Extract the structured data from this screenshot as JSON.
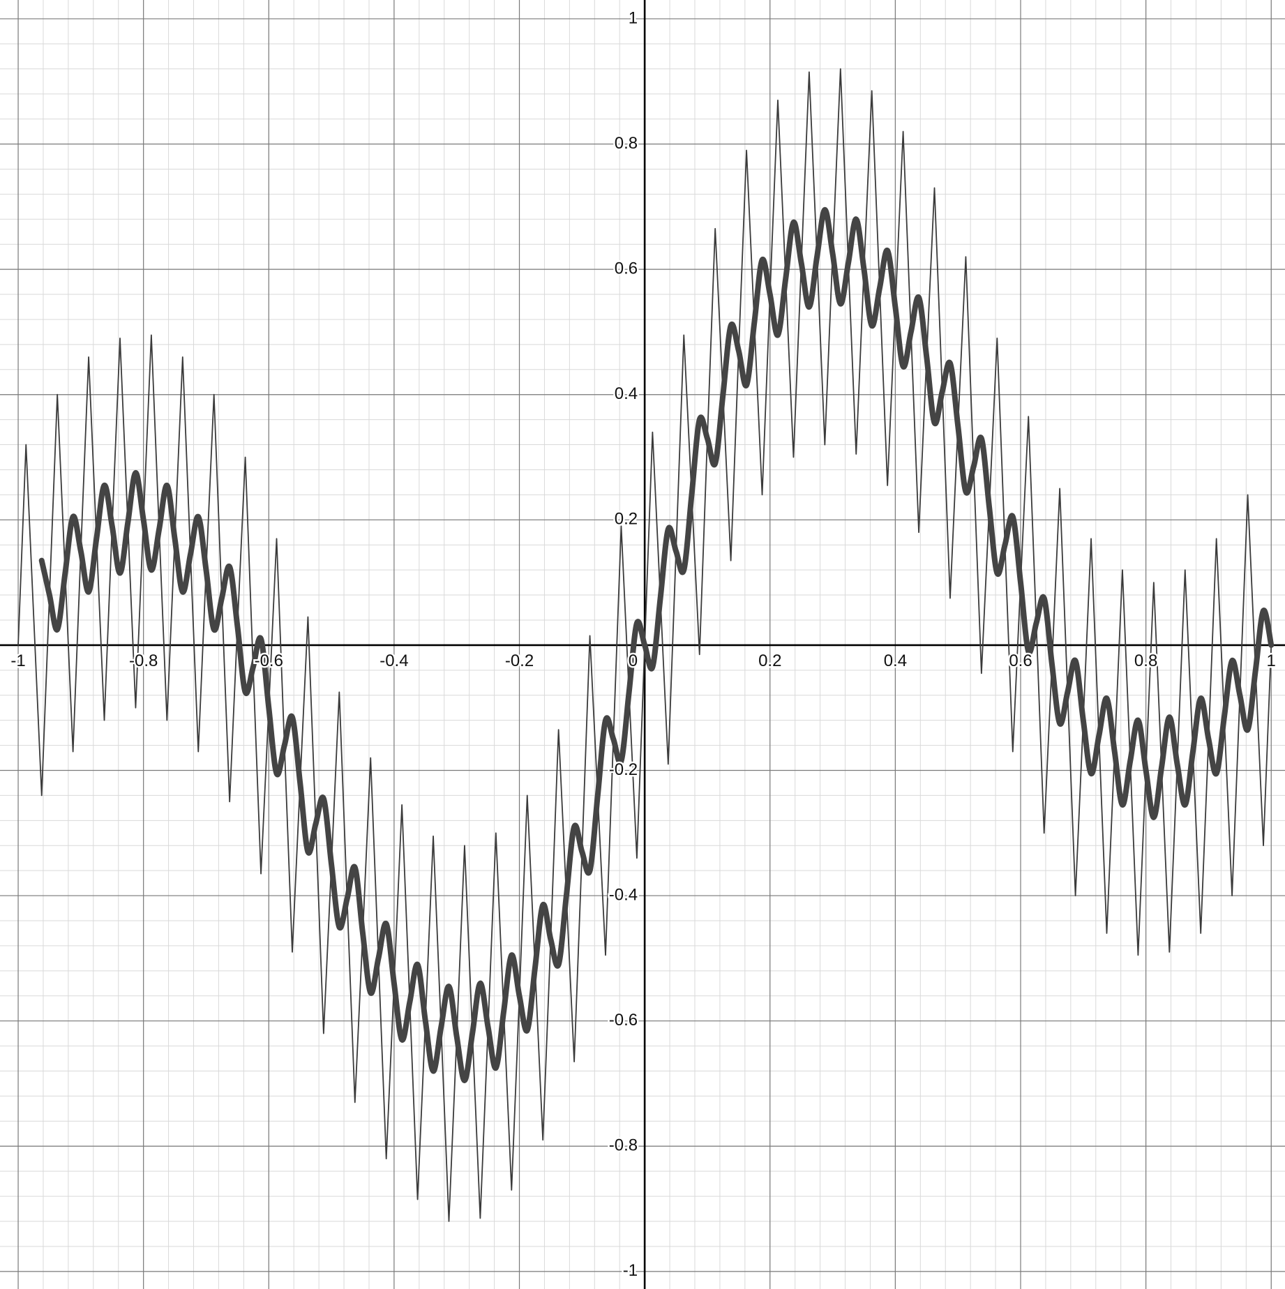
{
  "chart_data": {
    "type": "line",
    "xlim": [
      -1.029,
      1.022
    ],
    "ylim": [
      -1.028,
      1.03
    ],
    "xticks": [
      -1,
      -0.8,
      -0.6,
      -0.4,
      -0.2,
      0,
      0.2,
      0.4,
      0.6,
      0.8,
      1
    ],
    "yticks": [
      -1,
      -0.8,
      -0.6,
      -0.4,
      -0.2,
      0.2,
      0.4,
      0.6,
      0.8,
      1
    ],
    "grid": true,
    "minor_grid": 5,
    "x": [
      -1,
      -0.9875,
      -0.975,
      -0.9625,
      -0.95,
      -0.9375,
      -0.925,
      -0.9125,
      -0.9,
      -0.8875,
      -0.875,
      -0.8625,
      -0.85,
      -0.8375,
      -0.825,
      -0.8125,
      -0.8,
      -0.7875,
      -0.775,
      -0.7625,
      -0.75,
      -0.7375,
      -0.725,
      -0.7125,
      -0.7,
      -0.6875,
      -0.675,
      -0.6625,
      -0.65,
      -0.6375,
      -0.625,
      -0.6125,
      -0.6,
      -0.5875,
      -0.575,
      -0.5625,
      -0.55,
      -0.5375,
      -0.525,
      -0.5125,
      -0.5,
      -0.4875,
      -0.475,
      -0.4625,
      -0.45,
      -0.4375,
      -0.425,
      -0.4125,
      -0.4,
      -0.3875,
      -0.375,
      -0.3625,
      -0.35,
      -0.3375,
      -0.325,
      -0.3125,
      -0.3,
      -0.2875,
      -0.275,
      -0.2625,
      -0.25,
      -0.2375,
      -0.225,
      -0.2125,
      -0.2,
      -0.1875,
      -0.175,
      -0.1625,
      -0.15,
      -0.1375,
      -0.125,
      -0.1125,
      -0.1,
      -0.0875,
      -0.075,
      -0.0625,
      -0.05,
      -0.0375,
      -0.025,
      -0.0125,
      0,
      0.0125,
      0.025,
      0.0375,
      0.05,
      0.0625,
      0.075,
      0.0875,
      0.1,
      0.1125,
      0.125,
      0.1375,
      0.15,
      0.1625,
      0.175,
      0.1875,
      0.2,
      0.2125,
      0.225,
      0.2375,
      0.25,
      0.2625,
      0.275,
      0.2875,
      0.3,
      0.3125,
      0.325,
      0.3375,
      0.35,
      0.3625,
      0.375,
      0.3875,
      0.4,
      0.4125,
      0.425,
      0.4375,
      0.45,
      0.4625,
      0.475,
      0.4875,
      0.5,
      0.5125,
      0.525,
      0.5375,
      0.55,
      0.5625,
      0.575,
      0.5875,
      0.6,
      0.6125,
      0.625,
      0.6375,
      0.65,
      0.6625,
      0.675,
      0.6875,
      0.7,
      0.7125,
      0.725,
      0.7375,
      0.75,
      0.7625,
      0.775,
      0.7875,
      0.8,
      0.8125,
      0.825,
      0.8375,
      0.85,
      0.8625,
      0.875,
      0.8875,
      0.9,
      0.9125,
      0.925,
      0.9375,
      0.95,
      0.9625,
      0.975,
      0.9875,
      1
    ],
    "series": [
      {
        "color": "#3a3a3a",
        "width": 1.8,
        "smooth": false,
        "values": [
          0,
          0.32,
          0.04,
          -0.24,
          0.08,
          0.4,
          0.115,
          -0.17,
          0.15,
          0.46,
          0.17,
          -0.12,
          0.19,
          0.49,
          0.195,
          -0.1,
          0.2,
          0.495,
          0.185,
          -0.12,
          0.17,
          0.46,
          0.145,
          -0.17,
          0.12,
          0.4,
          0.075,
          -0.25,
          0.03,
          0.3,
          -0.035,
          -0.365,
          -0.1,
          0.17,
          -0.16,
          -0.49,
          -0.22,
          0.045,
          -0.285,
          -0.62,
          -0.35,
          -0.075,
          -0.405,
          -0.73,
          -0.46,
          -0.18,
          -0.5,
          -0.82,
          -0.54,
          -0.255,
          -0.57,
          -0.885,
          -0.6,
          -0.305,
          -0.61,
          -0.92,
          -0.625,
          -0.32,
          -0.62,
          -0.915,
          -0.61,
          -0.3,
          -0.585,
          -0.87,
          -0.56,
          -0.24,
          -0.515,
          -0.79,
          -0.47,
          -0.135,
          -0.4,
          -0.665,
          -0.33,
          0.015,
          -0.24,
          -0.495,
          -0.15,
          0.19,
          -0.075,
          -0.34,
          0,
          0.34,
          0.075,
          -0.19,
          0.15,
          0.495,
          0.24,
          -0.015,
          0.33,
          0.665,
          0.4,
          0.135,
          0.47,
          0.79,
          0.515,
          0.24,
          0.56,
          0.87,
          0.585,
          0.3,
          0.61,
          0.915,
          0.62,
          0.32,
          0.625,
          0.92,
          0.61,
          0.305,
          0.6,
          0.885,
          0.57,
          0.255,
          0.54,
          0.82,
          0.5,
          0.18,
          0.46,
          0.73,
          0.405,
          0.075,
          0.35,
          0.62,
          0.285,
          -0.045,
          0.22,
          0.49,
          0.16,
          -0.17,
          0.1,
          0.365,
          0.035,
          -0.3,
          -0.03,
          0.25,
          -0.075,
          -0.4,
          -0.12,
          0.17,
          -0.145,
          -0.46,
          -0.17,
          0.12,
          -0.185,
          -0.495,
          -0.2,
          0.1,
          -0.195,
          -0.49,
          -0.19,
          0.12,
          -0.17,
          -0.46,
          -0.15,
          0.17,
          -0.115,
          -0.4,
          -0.08,
          0.24,
          -0.04,
          -0.32,
          0
        ]
      },
      {
        "color": "#444444",
        "width": 8,
        "smooth": true,
        "values": [
          null,
          null,
          null,
          0.135,
          0.08,
          0.025,
          0.115,
          0.205,
          0.15,
          0.085,
          0.17,
          0.255,
          0.19,
          0.115,
          0.195,
          0.275,
          0.2,
          0.12,
          0.185,
          0.255,
          0.17,
          0.085,
          0.145,
          0.205,
          0.12,
          0.025,
          0.075,
          0.125,
          0.03,
          -0.075,
          -0.035,
          0.01,
          -0.1,
          -0.205,
          -0.16,
          -0.115,
          -0.22,
          -0.33,
          -0.285,
          -0.245,
          -0.35,
          -0.45,
          -0.405,
          -0.355,
          -0.46,
          -0.555,
          -0.5,
          -0.445,
          -0.54,
          -0.63,
          -0.57,
          -0.51,
          -0.6,
          -0.68,
          -0.61,
          -0.545,
          -0.625,
          -0.695,
          -0.62,
          -0.54,
          -0.61,
          -0.675,
          -0.585,
          -0.495,
          -0.56,
          -0.615,
          -0.515,
          -0.415,
          -0.47,
          -0.51,
          -0.4,
          -0.29,
          -0.33,
          -0.36,
          -0.24,
          -0.12,
          -0.15,
          -0.185,
          -0.075,
          0.035,
          0,
          -0.035,
          0.075,
          0.185,
          0.15,
          0.12,
          0.24,
          0.36,
          0.33,
          0.29,
          0.4,
          0.51,
          0.47,
          0.415,
          0.515,
          0.615,
          0.56,
          0.495,
          0.585,
          0.675,
          0.61,
          0.54,
          0.62,
          0.695,
          0.625,
          0.545,
          0.61,
          0.68,
          0.6,
          0.51,
          0.57,
          0.63,
          0.54,
          0.445,
          0.5,
          0.555,
          0.46,
          0.355,
          0.405,
          0.45,
          0.35,
          0.245,
          0.285,
          0.33,
          0.22,
          0.115,
          0.16,
          0.205,
          0.1,
          -0.01,
          0.035,
          0.075,
          -0.03,
          -0.125,
          -0.075,
          -0.025,
          -0.12,
          -0.205,
          -0.145,
          -0.085,
          -0.17,
          -0.255,
          -0.185,
          -0.12,
          -0.2,
          -0.275,
          -0.195,
          -0.115,
          -0.19,
          -0.255,
          -0.17,
          -0.085,
          -0.15,
          -0.205,
          -0.115,
          -0.025,
          -0.08,
          -0.135,
          -0.04,
          0.055,
          0
        ]
      }
    ]
  }
}
